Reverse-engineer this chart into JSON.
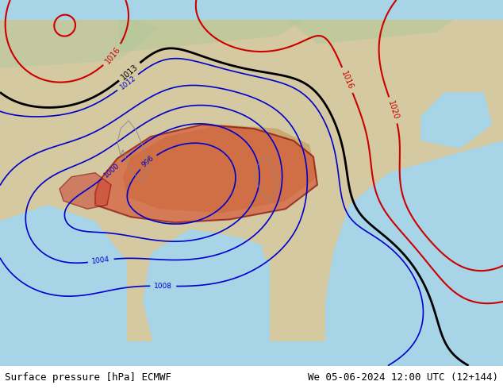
{
  "title_left": "Surface pressure [hPa] ECMWF",
  "title_right": "We 05-06-2024 12:00 UTC (12+144)",
  "footer_fontsize": 9,
  "fig_width": 6.34,
  "fig_height": 4.9,
  "dpi": 100,
  "ocean_color": "#a8d4e8",
  "land_color": "#d4c9a0",
  "tibet_color": "#c8a060",
  "low_fill_color": "#d4603a",
  "low_fill_edge": "#800000",
  "blue_contour_color": "#0000cc",
  "black_contour_color": "#000000",
  "red_contour_color": "#cc0000",
  "border_color": "#888888",
  "footer_bg": "#ffffff"
}
